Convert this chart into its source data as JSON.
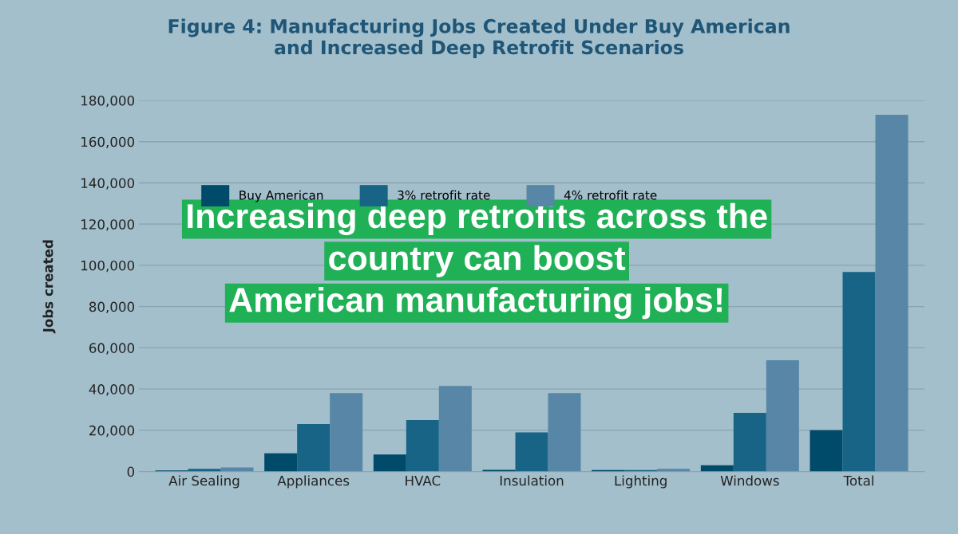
{
  "chart_data": {
    "type": "bar",
    "title": "Figure 4: Manufacturing Jobs Created Under Buy American\nand Increased Deep Retrofit Scenarios",
    "ylabel": "Jobs created",
    "categories": [
      "Air Sealing",
      "Appliances",
      "HVAC",
      "Insulation",
      "Lighting",
      "Windows",
      "Total"
    ],
    "series": [
      {
        "name": "Buy American",
        "color": "#004a6a",
        "values": [
          500,
          8800,
          8300,
          800,
          700,
          3000,
          20000
        ]
      },
      {
        "name": "3% retrofit rate",
        "color": "#176486",
        "values": [
          1300,
          23000,
          25000,
          19000,
          700,
          28500,
          96800
        ]
      },
      {
        "name": "4% retrofit rate",
        "color": "#5786a6",
        "values": [
          2000,
          38000,
          41500,
          38000,
          1300,
          54000,
          173000
        ]
      }
    ],
    "ylim": [
      0,
      180000
    ],
    "yticks": [
      {
        "value": 0,
        "label": "0"
      },
      {
        "value": 20000,
        "label": "20,000"
      },
      {
        "value": 40000,
        "label": "40,000"
      },
      {
        "value": 60000,
        "label": "60,000"
      },
      {
        "value": 80000,
        "label": "80,000"
      },
      {
        "value": 100000,
        "label": "100,000"
      },
      {
        "value": 120000,
        "label": "120,000"
      },
      {
        "value": 140000,
        "label": "140,000"
      },
      {
        "value": 160000,
        "label": "160,000"
      },
      {
        "value": 180000,
        "label": "180,000"
      }
    ],
    "grid": "y",
    "legend": "top",
    "annotations": [
      "Increasing deep retrofits across the\ncountry can boost\nAmerican manufacturing jobs!"
    ]
  }
}
